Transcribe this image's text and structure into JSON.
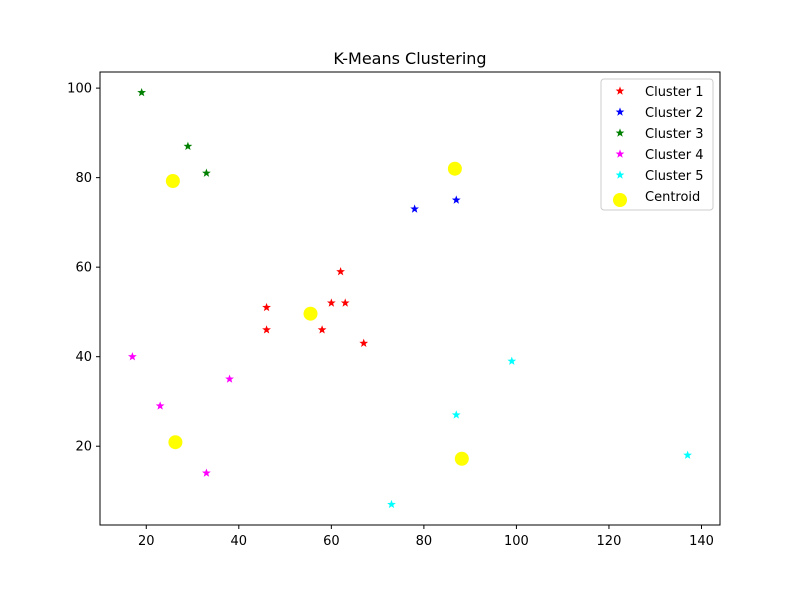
{
  "chart_data": {
    "type": "scatter",
    "title": "K-Means Clustering",
    "xlabel": "",
    "ylabel": "",
    "xlim": [
      10.0,
      144.0
    ],
    "ylim": [
      2.4,
      103.6
    ],
    "x_ticks": [
      20,
      40,
      60,
      80,
      100,
      120,
      140
    ],
    "y_ticks": [
      20,
      40,
      60,
      80,
      100
    ],
    "grid": false,
    "legend_position": "top-right",
    "series": [
      {
        "name": "Cluster 1",
        "color": "#ff0000",
        "marker": "star",
        "points": [
          [
            46,
            51
          ],
          [
            46,
            46
          ],
          [
            58,
            46
          ],
          [
            60,
            52
          ],
          [
            62,
            59
          ],
          [
            63,
            52
          ],
          [
            67,
            43
          ]
        ]
      },
      {
        "name": "Cluster 2",
        "color": "#0000ff",
        "marker": "star",
        "points": [
          [
            78,
            73
          ],
          [
            87,
            75
          ]
        ]
      },
      {
        "name": "Cluster 3",
        "color": "#008000",
        "marker": "star",
        "points": [
          [
            19,
            99
          ],
          [
            29,
            87
          ],
          [
            33,
            81
          ]
        ]
      },
      {
        "name": "Cluster 4",
        "color": "#ff00ff",
        "marker": "star",
        "points": [
          [
            17,
            40
          ],
          [
            23,
            29
          ],
          [
            33,
            14
          ],
          [
            38,
            35
          ]
        ]
      },
      {
        "name": "Cluster 5",
        "color": "#00ffff",
        "marker": "star",
        "points": [
          [
            73,
            7
          ],
          [
            87,
            27
          ],
          [
            99,
            39
          ],
          [
            137,
            18
          ]
        ]
      },
      {
        "name": "Centroid",
        "color": "#ffff00",
        "marker": "circle",
        "points": [
          [
            25.75,
            79.25
          ],
          [
            55.5,
            49.6
          ],
          [
            86.7,
            82.0
          ],
          [
            26.3,
            20.9
          ],
          [
            88.2,
            17.2
          ]
        ]
      }
    ]
  }
}
